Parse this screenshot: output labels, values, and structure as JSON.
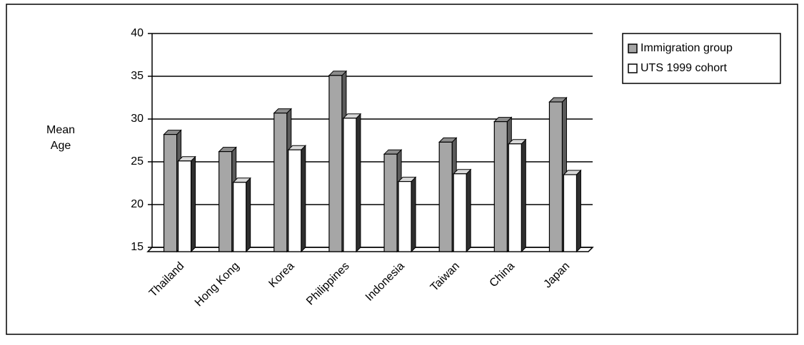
{
  "chart_data": {
    "type": "bar3d",
    "y_label": "Mean Age",
    "categories": [
      "Thailand",
      "Hong Kong",
      "Korea",
      "Philippines",
      "Indonesia",
      "Taiwan",
      "China",
      "Japan"
    ],
    "series": [
      {
        "name": "Immigration group",
        "color": "#a6a6a6",
        "values": [
          28.7,
          26.7,
          31.2,
          35.6,
          26.4,
          27.8,
          30.2,
          32.5
        ]
      },
      {
        "name": "UTS 1999 cohort",
        "color": "#ffffff",
        "values": [
          25.6,
          23.1,
          26.9,
          30.6,
          23.2,
          24.1,
          27.6,
          24.0
        ]
      }
    ],
    "ylim": [
      15,
      40
    ],
    "yticks": [
      15,
      20,
      25,
      30,
      35,
      40
    ],
    "grid": true,
    "legend": "top-right"
  }
}
